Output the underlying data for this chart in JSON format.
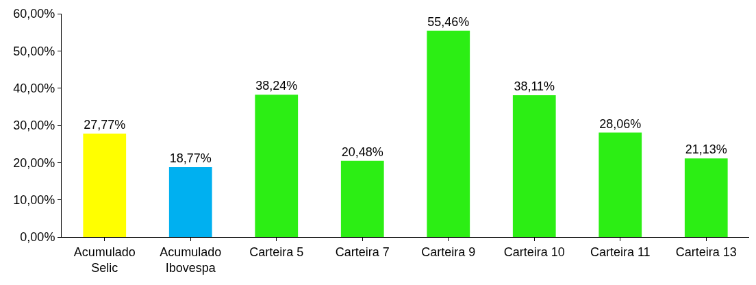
{
  "chart_data": {
    "type": "bar",
    "categories": [
      "Acumulado\nSelic",
      "Acumulado\nIbovespa",
      "Carteira 5",
      "Carteira 7",
      "Carteira 9",
      "Carteira 10",
      "Carteira 11",
      "Carteira 13"
    ],
    "values": [
      27.77,
      18.77,
      38.24,
      20.48,
      55.46,
      38.11,
      28.06,
      21.13
    ],
    "colors": [
      "#ffff00",
      "#00b0f0",
      "#2cee14",
      "#2cee14",
      "#2cee14",
      "#2cee14",
      "#2cee14",
      "#2cee14"
    ],
    "value_labels": [
      "27,77%",
      "18,77%",
      "38,24%",
      "20,48%",
      "55,46%",
      "38,11%",
      "28,06%",
      "21,13%"
    ],
    "ylim": [
      0,
      60
    ],
    "yticks": [
      {
        "value": 0,
        "label": "0,00%"
      },
      {
        "value": 10,
        "label": "10,00%"
      },
      {
        "value": 20,
        "label": "20,00%"
      },
      {
        "value": 30,
        "label": "30,00%"
      },
      {
        "value": 40,
        "label": "40,00%"
      },
      {
        "value": 50,
        "label": "50,00%"
      },
      {
        "value": 60,
        "label": "60,00%"
      }
    ],
    "grid": false
  }
}
